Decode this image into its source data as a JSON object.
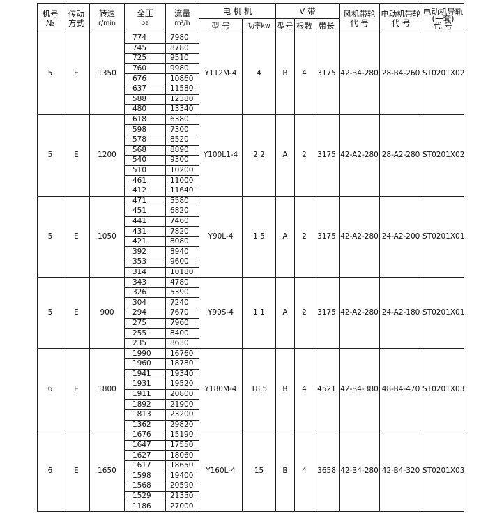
{
  "header": {
    "no": [
      "机号",
      "№"
    ],
    "drive": [
      "传动",
      "方式"
    ],
    "speed": [
      "转速",
      "r/min"
    ],
    "pressure": [
      "全压",
      "pa"
    ],
    "flow": [
      "流量",
      "m³/h"
    ],
    "motor": "电 机 机",
    "motor_model": "型 号",
    "motor_power": "功率kw",
    "belt": "V 带",
    "belt_type": "型号",
    "belt_count": "根数",
    "belt_length": "带长",
    "fan_pulley": [
      "风机带轮",
      "代 号"
    ],
    "motor_pulley": [
      "电动机带轮",
      "代 号"
    ],
    "rail": [
      "电动机导轨",
      "(一套)",
      "代 号"
    ]
  },
  "groups": [
    {
      "no": 5,
      "drive": "E",
      "speed": 1350,
      "rows": [
        [
          774,
          7980
        ],
        [
          745,
          8780
        ],
        [
          725,
          9510
        ],
        [
          760,
          9980
        ],
        [
          676,
          10860
        ],
        [
          637,
          11580
        ],
        [
          588,
          12380
        ],
        [
          480,
          13340
        ]
      ],
      "motor_model": "Y112M-4",
      "power": 4,
      "belt_type": "B",
      "belt_count": 4,
      "belt_length": 3175,
      "fan_pulley": "42-B4-280",
      "motor_pulley": "28-B4-260",
      "rail": "ST0201X02"
    },
    {
      "no": 5,
      "drive": "E",
      "speed": 1200,
      "rows": [
        [
          618,
          6380
        ],
        [
          598,
          7300
        ],
        [
          578,
          8520
        ],
        [
          568,
          8890
        ],
        [
          540,
          9300
        ],
        [
          510,
          10200
        ],
        [
          461,
          11000
        ],
        [
          412,
          11640
        ]
      ],
      "motor_model": "Y100L1-4",
      "power": 2.2,
      "belt_type": "A",
      "belt_count": 2,
      "belt_length": 3175,
      "fan_pulley": "42-A2-280",
      "motor_pulley": "28-A2-280",
      "rail": "ST0201X02"
    },
    {
      "no": 5,
      "drive": "E",
      "speed": 1050,
      "rows": [
        [
          471,
          5580
        ],
        [
          451,
          6820
        ],
        [
          441,
          7460
        ],
        [
          431,
          7820
        ],
        [
          421,
          8080
        ],
        [
          392,
          8940
        ],
        [
          353,
          9600
        ],
        [
          314,
          10180
        ]
      ],
      "motor_model": "Y90L-4",
      "power": 1.5,
      "belt_type": "A",
      "belt_count": 2,
      "belt_length": 3175,
      "fan_pulley": "42-A2-280",
      "motor_pulley": "24-A2-200",
      "rail": "ST0201X01"
    },
    {
      "no": 5,
      "drive": "E",
      "speed": 900,
      "rows": [
        [
          343,
          4780
        ],
        [
          326,
          5390
        ],
        [
          304,
          7240
        ],
        [
          294,
          7670
        ],
        [
          275,
          7960
        ],
        [
          255,
          8400
        ],
        [
          235,
          8630
        ]
      ],
      "motor_model": "Y90S-4",
      "power": 1.1,
      "belt_type": "A",
      "belt_count": 2,
      "belt_length": 3175,
      "fan_pulley": "42-A2-280",
      "motor_pulley": "24-A2-180",
      "rail": "ST0201X01"
    },
    {
      "no": 6,
      "drive": "E",
      "speed": 1800,
      "rows": [
        [
          1990,
          16760
        ],
        [
          1960,
          18780
        ],
        [
          1941,
          19340
        ],
        [
          1931,
          19520
        ],
        [
          1911,
          20800
        ],
        [
          1892,
          21900
        ],
        [
          1813,
          23200
        ],
        [
          1362,
          29820
        ]
      ],
      "motor_model": "Y180M-4",
      "power": 18.5,
      "belt_type": "B",
      "belt_count": 4,
      "belt_length": 4521,
      "fan_pulley": "42-B4-380",
      "motor_pulley": "48-B4-470",
      "rail": "ST0201X03"
    },
    {
      "no": 6,
      "drive": "E",
      "speed": 1650,
      "rows": [
        [
          1676,
          15190
        ],
        [
          1647,
          17550
        ],
        [
          1627,
          18060
        ],
        [
          1617,
          18650
        ],
        [
          1598,
          19400
        ],
        [
          1568,
          20590
        ],
        [
          1529,
          21350
        ],
        [
          1186,
          27000
        ]
      ],
      "motor_model": "Y160L-4",
      "power": 15,
      "belt_type": "B",
      "belt_count": 4,
      "belt_length": 3658,
      "fan_pulley": "42-B4-280",
      "motor_pulley": "42-B4-320",
      "rail": "ST0201X03"
    }
  ]
}
